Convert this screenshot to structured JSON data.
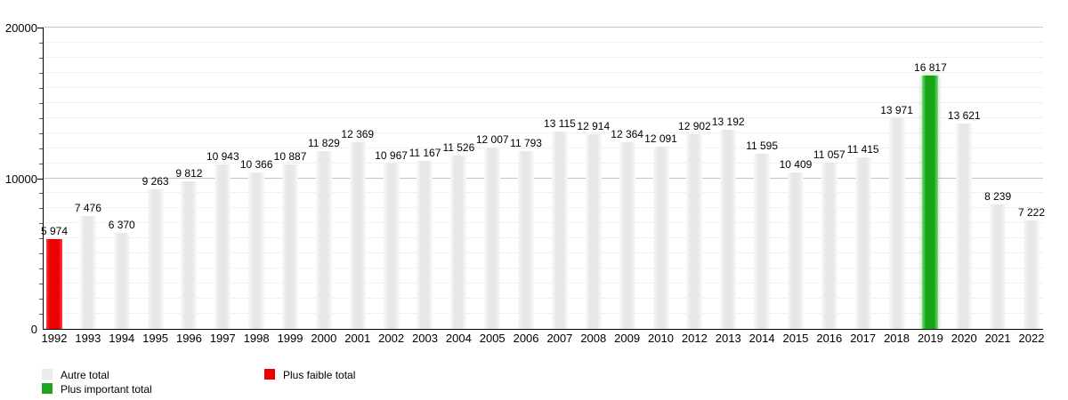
{
  "chart_data": {
    "type": "bar",
    "title": "",
    "xlabel": "",
    "ylabel": "",
    "categories": [
      "1992",
      "1993",
      "1994",
      "1995",
      "1996",
      "1997",
      "1998",
      "1999",
      "2000",
      "2001",
      "2002",
      "2003",
      "2004",
      "2005",
      "2006",
      "2007",
      "2008",
      "2009",
      "2010",
      "2012",
      "2013",
      "2014",
      "2015",
      "2016",
      "2017",
      "2018",
      "2019",
      "2020",
      "2021",
      "2022"
    ],
    "values": [
      5974,
      7476,
      6370,
      9263,
      9812,
      10943,
      10366,
      10887,
      11829,
      12369,
      10967,
      11167,
      11526,
      12007,
      11793,
      13115,
      12914,
      12364,
      12091,
      12902,
      13192,
      11595,
      10409,
      11057,
      11415,
      13971,
      16817,
      13621,
      8239,
      7222
    ],
    "value_labels": [
      "5 974",
      "7 476",
      "6 370",
      "9 263",
      "9 812",
      "10 943",
      "10 366",
      "10 887",
      "11 829",
      "12 369",
      "10 967",
      "11 167",
      "11 526",
      "12 007",
      "11 793",
      "13 115",
      "12 914",
      "12 364",
      "12 091",
      "12 902",
      "13 192",
      "11 595",
      "10 409",
      "11 057",
      "11 415",
      "13 971",
      "16 817",
      "13 621",
      "8 239",
      "7 222"
    ],
    "ylim": [
      0,
      20000
    ],
    "yticks": [
      0,
      10000,
      20000
    ],
    "ytick_labels": [
      "0",
      "10000",
      "20000"
    ],
    "minor_grid_step": 1000,
    "grid": true,
    "legend_position": "bottom",
    "highlights": {
      "lowest": {
        "year": "1992",
        "style": "faible"
      },
      "highest": {
        "year": "2019",
        "style": "important"
      }
    }
  },
  "colors": {
    "bar_default": "#e7e7e7",
    "bar_lowest": "#ee0000",
    "bar_highest": "#14a414",
    "grid_minor": "#f1f1f1",
    "grid_major": "#c6c6c6",
    "axis": "#000000"
  },
  "legend": {
    "items": [
      {
        "label": "Autre total",
        "color": "#ececec",
        "name": "autre-total"
      },
      {
        "label": "Plus faible total",
        "color": "#ee0000",
        "name": "plus-faible-total"
      },
      {
        "label": "Plus important total",
        "color": "#1ea41e",
        "name": "plus-important-total"
      }
    ]
  }
}
